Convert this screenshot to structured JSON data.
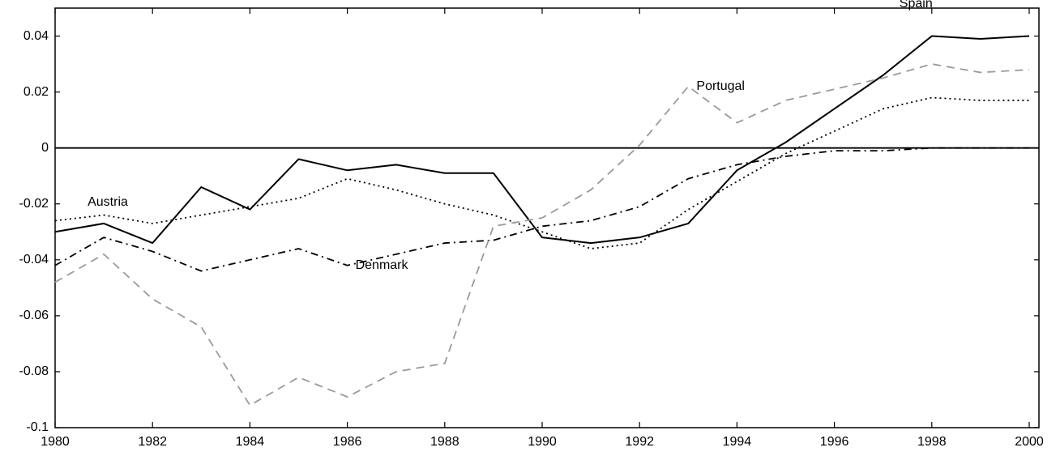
{
  "chart_data": {
    "type": "line",
    "x": [
      1980,
      1981,
      1982,
      1983,
      1984,
      1985,
      1986,
      1987,
      1988,
      1989,
      1990,
      1991,
      1992,
      1993,
      1994,
      1995,
      1996,
      1997,
      1998,
      1999,
      2000
    ],
    "xlim": [
      1980,
      2000.2
    ],
    "xticks": [
      1980,
      1982,
      1984,
      1986,
      1988,
      1990,
      1992,
      1994,
      1996,
      1998,
      2000
    ],
    "ylim": [
      -0.1,
      0.05
    ],
    "yticks": [
      0.04,
      0.02,
      0,
      -0.02,
      -0.04,
      -0.06,
      -0.08,
      -0.1
    ],
    "zero_line": true,
    "series": [
      {
        "name": "Spain",
        "color": "#000000",
        "style": "solid",
        "values": [
          -0.03,
          -0.027,
          -0.034,
          -0.014,
          -0.022,
          -0.004,
          -0.008,
          -0.006,
          -0.009,
          -0.009,
          -0.032,
          -0.034,
          -0.032,
          -0.027,
          -0.008,
          0.002,
          0.014,
          0.026,
          0.04,
          0.039,
          0.04
        ]
      },
      {
        "name": "Austria",
        "color": "#000000",
        "style": "dotted",
        "values": [
          -0.026,
          -0.024,
          -0.027,
          -0.024,
          -0.021,
          -0.018,
          -0.011,
          -0.015,
          -0.02,
          -0.024,
          -0.03,
          -0.036,
          -0.034,
          -0.022,
          -0.012,
          -0.002,
          0.006,
          0.014,
          0.018,
          0.017,
          0.017
        ]
      },
      {
        "name": "Denmark",
        "color": "#000000",
        "style": "dashdot",
        "values": [
          -0.042,
          -0.032,
          -0.037,
          -0.044,
          -0.04,
          -0.036,
          -0.042,
          -0.038,
          -0.034,
          -0.033,
          -0.028,
          -0.026,
          -0.021,
          -0.011,
          -0.006,
          -0.003,
          -0.001,
          -0.001,
          0.0,
          0.0,
          0.0
        ]
      },
      {
        "name": "Portugal",
        "color": "#9a9a9a",
        "style": "dashed",
        "values": [
          -0.048,
          -0.038,
          -0.054,
          -0.064,
          -0.092,
          -0.082,
          -0.089,
          -0.08,
          -0.077,
          -0.028,
          -0.025,
          -0.015,
          0.001,
          0.022,
          0.009,
          0.017,
          0.021,
          0.025,
          0.03,
          0.027,
          0.028
        ]
      }
    ]
  }
}
